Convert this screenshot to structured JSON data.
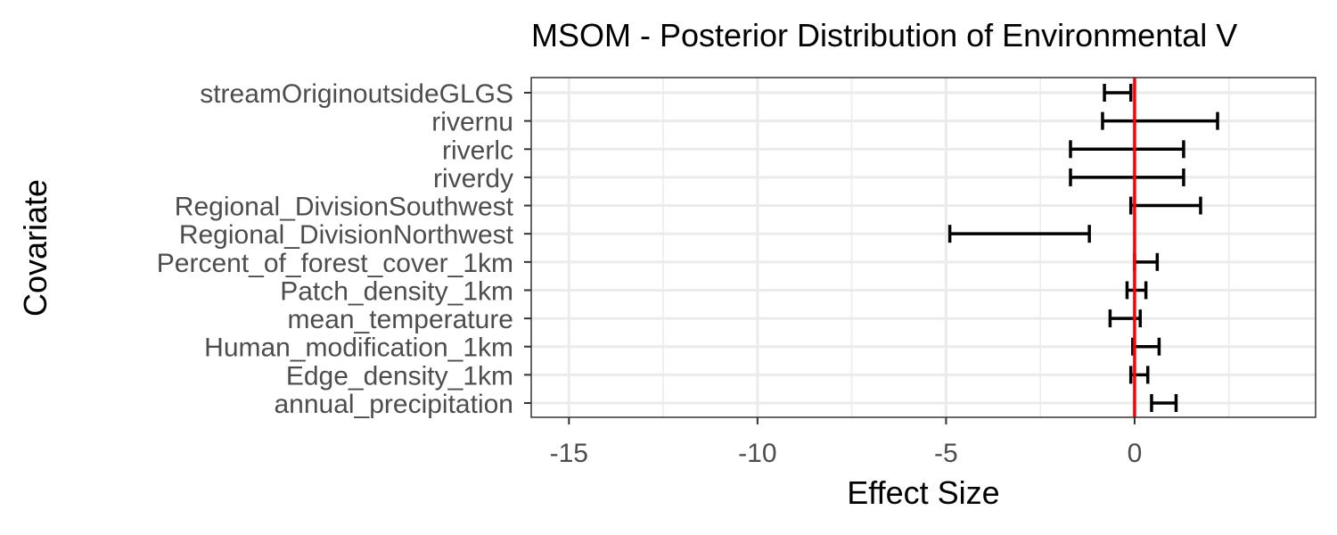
{
  "chart_data": {
    "type": "errorbar",
    "title": "MSOM - Posterior Distribution of Environmental V",
    "xlabel": "Effect Size",
    "ylabel": "Covariate",
    "xlim": [
      -16,
      4.8
    ],
    "xticks": [
      -15,
      -10,
      -5,
      0
    ],
    "xtick_labels": [
      "-15",
      "-10",
      "-5",
      "0"
    ],
    "grid": true,
    "reference_line": {
      "x": 0,
      "color": "#ff0000"
    },
    "covariates": [
      "streamOriginoutsideGLGS",
      "rivernu",
      "riverlc",
      "riverdy",
      "Regional_DivisionSouthwest",
      "Regional_DivisionNorthwest",
      "Percent_of_forest_cover_1km",
      "Patch_density_1km",
      "mean_temperature",
      "Human_modification_1km",
      "Edge_density_1km",
      "annual_precipitation"
    ],
    "lower": [
      -0.8,
      -0.85,
      -1.7,
      -1.7,
      -0.1,
      -4.9,
      0.0,
      -0.2,
      -0.65,
      -0.05,
      -0.1,
      0.45
    ],
    "upper": [
      -0.1,
      2.2,
      1.3,
      1.3,
      1.75,
      -1.2,
      0.6,
      0.3,
      0.15,
      0.65,
      0.35,
      1.1
    ],
    "colors": {
      "bar": "#000000",
      "reference": "#ff0000",
      "grid": "#ebebeb",
      "panel_border": "#333333"
    }
  }
}
